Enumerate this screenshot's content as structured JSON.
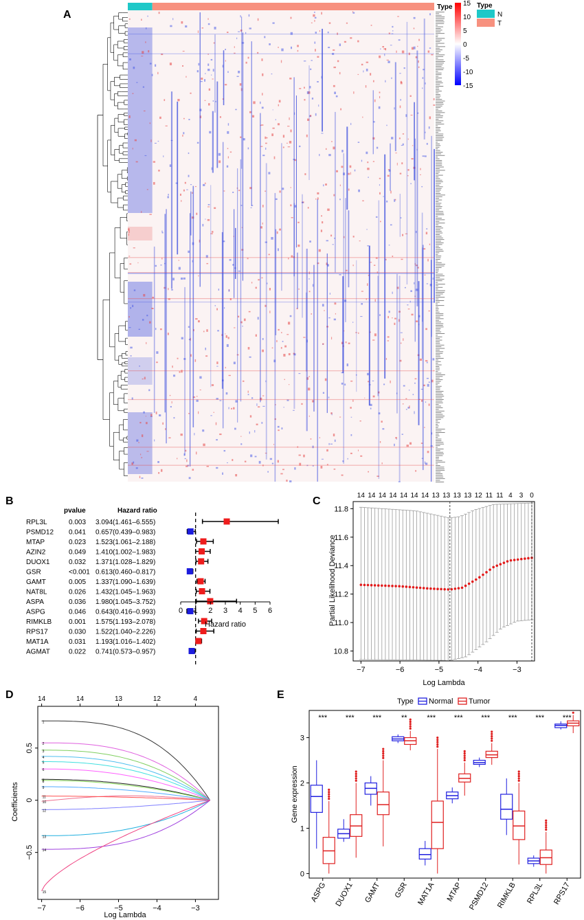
{
  "figure": {
    "panels": {
      "A": "A",
      "B": "B",
      "C": "C",
      "D": "D",
      "E": "E"
    }
  },
  "chart_data": [
    {
      "panel": "A",
      "type": "heatmap",
      "title": "",
      "column_annotation_label": "Type",
      "groups": [
        "N",
        "T"
      ],
      "group_colors": [
        "#1fc8c8",
        "#f7917f"
      ],
      "group_fractions": [
        0.08,
        0.92
      ],
      "color_scale": {
        "min": -15,
        "max": 15,
        "ticks": [
          15,
          10,
          5,
          0,
          -5,
          -10,
          -15
        ],
        "low_color": "#0000ff",
        "mid_color": "#ffffff",
        "high_color": "#ff0000"
      },
      "legend_title": "Type"
    },
    {
      "panel": "B",
      "type": "forest",
      "col_pvalue": "pvalue",
      "col_hr": "Hazard ratio",
      "xlabel": "Hazard ratio",
      "xlim": [
        0,
        6
      ],
      "xticks": [
        0,
        1,
        2,
        3,
        4,
        5,
        6
      ],
      "reference": 1,
      "rows": [
        {
          "gene": "RPL3L",
          "pvalue": "0.003",
          "hr_text": "3.094(1.461–6.555)",
          "hr": 3.094,
          "lo": 1.461,
          "hi": 6.555
        },
        {
          "gene": "PSMD12",
          "pvalue": "0.041",
          "hr_text": "0.657(0.439–0.983)",
          "hr": 0.657,
          "lo": 0.439,
          "hi": 0.983
        },
        {
          "gene": "MTAP",
          "pvalue": "0.023",
          "hr_text": "1.523(1.061–2.188)",
          "hr": 1.523,
          "lo": 1.061,
          "hi": 2.188
        },
        {
          "gene": "AZIN2",
          "pvalue": "0.049",
          "hr_text": "1.410(1.002–1.983)",
          "hr": 1.41,
          "lo": 1.002,
          "hi": 1.983
        },
        {
          "gene": "DUOX1",
          "pvalue": "0.032",
          "hr_text": "1.371(1.028–1.829)",
          "hr": 1.371,
          "lo": 1.028,
          "hi": 1.829
        },
        {
          "gene": "GSR",
          "pvalue": "<0.001",
          "hr_text": "0.613(0.460–0.817)",
          "hr": 0.613,
          "lo": 0.46,
          "hi": 0.817
        },
        {
          "gene": "GAMT",
          "pvalue": "0.005",
          "hr_text": "1.337(1.090–1.639)",
          "hr": 1.337,
          "lo": 1.09,
          "hi": 1.639
        },
        {
          "gene": "NAT8L",
          "pvalue": "0.026",
          "hr_text": "1.432(1.045–1.963)",
          "hr": 1.432,
          "lo": 1.045,
          "hi": 1.963
        },
        {
          "gene": "ASPA",
          "pvalue": "0.036",
          "hr_text": "1.980(1.045–3.752)",
          "hr": 1.98,
          "lo": 1.045,
          "hi": 3.752
        },
        {
          "gene": "ASPG",
          "pvalue": "0.046",
          "hr_text": "0.643(0.416–0.993)",
          "hr": 0.643,
          "lo": 0.416,
          "hi": 0.993
        },
        {
          "gene": "RIMKLB",
          "pvalue": "0.001",
          "hr_text": "1.575(1.193–2.078)",
          "hr": 1.575,
          "lo": 1.193,
          "hi": 2.078
        },
        {
          "gene": "RPS17",
          "pvalue": "0.030",
          "hr_text": "1.522(1.040–2.226)",
          "hr": 1.522,
          "lo": 1.04,
          "hi": 2.226
        },
        {
          "gene": "MAT1A",
          "pvalue": "0.031",
          "hr_text": "1.193(1.016–1.402)",
          "hr": 1.193,
          "lo": 1.016,
          "hi": 1.402
        },
        {
          "gene": "AGMAT",
          "pvalue": "0.022",
          "hr_text": "0.741(0.573–0.957)",
          "hr": 0.741,
          "lo": 0.573,
          "hi": 0.957
        }
      ]
    },
    {
      "panel": "C",
      "type": "scatter",
      "title": "",
      "xlabel": "Log Lambda",
      "ylabel": "Partial Likelihood Deviance",
      "xlim": [
        -7.2,
        -2.55
      ],
      "ylim": [
        10.73,
        11.85
      ],
      "xticks": [
        -7,
        -6,
        -5,
        -4,
        -3
      ],
      "yticks": [
        10.8,
        11.0,
        11.2,
        11.4,
        11.6,
        11.8
      ],
      "top_ticks": [
        "14",
        "14",
        "14",
        "14",
        "14",
        "14",
        "14",
        "13",
        "13",
        "13",
        "13",
        "12",
        "11",
        "11",
        "4",
        "3",
        "0"
      ],
      "vlines": [
        -4.72,
        -2.62
      ],
      "series": [
        {
          "name": "mean",
          "lambda_range": [
            -7.0,
            -2.62
          ],
          "n": 50,
          "mean_points": [
            [
              -7.0,
              11.265
            ],
            [
              -6.0,
              11.255
            ],
            [
              -5.2,
              11.238
            ],
            [
              -4.72,
              11.232
            ],
            [
              -4.4,
              11.245
            ],
            [
              -4.0,
              11.31
            ],
            [
              -3.6,
              11.39
            ],
            [
              -3.2,
              11.435
            ],
            [
              -2.62,
              11.455
            ]
          ],
          "upper_points": [
            [
              -7.0,
              11.81
            ],
            [
              -5.6,
              11.785
            ],
            [
              -4.72,
              11.735
            ],
            [
              -4.45,
              11.745
            ],
            [
              -4.1,
              11.79
            ],
            [
              -3.6,
              11.83
            ],
            [
              -2.62,
              11.84
            ]
          ],
          "lower_points": [
            [
              -7.0,
              10.74
            ],
            [
              -6.0,
              10.738
            ],
            [
              -5.0,
              10.735
            ],
            [
              -4.72,
              10.733
            ],
            [
              -4.3,
              10.76
            ],
            [
              -3.8,
              10.86
            ],
            [
              -3.4,
              10.96
            ],
            [
              -3.0,
              11.01
            ],
            [
              -2.62,
              11.02
            ]
          ]
        }
      ]
    },
    {
      "panel": "D",
      "type": "line",
      "title": "",
      "xlabel": "Log Lambda",
      "ylabel": "Coefficients",
      "xlim": [
        -7.1,
        -2.4
      ],
      "ylim": [
        -0.95,
        0.9
      ],
      "xticks": [
        -7,
        -6,
        -5,
        -4,
        -3
      ],
      "yticks": [
        -0.5,
        0,
        0.5
      ],
      "top_ticks": [
        {
          "x": -7,
          "label": "14"
        },
        {
          "x": -6,
          "label": "14"
        },
        {
          "x": -5,
          "label": "13"
        },
        {
          "x": -4,
          "label": "12"
        },
        {
          "x": -3,
          "label": "4"
        }
      ],
      "converge_x": -2.62,
      "series": [
        {
          "id": "1",
          "color": "#333333",
          "start": 0.76,
          "decay": 2.2,
          "bump": 0
        },
        {
          "id": "2",
          "color": "#df5fdf",
          "start": 0.55,
          "decay": 1.8,
          "bump": 0
        },
        {
          "id": "3",
          "color": "#7fcf5f",
          "start": 0.48,
          "decay": 1.6,
          "bump": 0
        },
        {
          "id": "4",
          "color": "#4fbfef",
          "start": 0.42,
          "decay": 1.5,
          "bump": 0
        },
        {
          "id": "5",
          "color": "#3fdfdf",
          "start": 0.37,
          "decay": 1.4,
          "bump": 0
        },
        {
          "id": "6",
          "color": "#ff5fff",
          "start": 0.3,
          "decay": 1.3,
          "bump": 0
        },
        {
          "id": "7",
          "color": "#222222",
          "start": 0.2,
          "decay": 1.2,
          "bump": 0
        },
        {
          "id": "8",
          "color": "#8fdf5f",
          "start": 0.19,
          "decay": 1.1,
          "bump": 0
        },
        {
          "id": "9",
          "color": "#4faaff",
          "start": 0.13,
          "decay": 1.0,
          "bump": 0
        },
        {
          "id": "10",
          "color": "#ef6f8f",
          "start": -0.01,
          "decay": 1.0,
          "bump": 0.05
        },
        {
          "id": "11",
          "color": "#ff4f4f",
          "start": 0.04,
          "decay": 0.9,
          "bump": 0
        },
        {
          "id": "12",
          "color": "#7f7fff",
          "start": -0.09,
          "decay": 0.9,
          "bump": 0
        },
        {
          "id": "13",
          "color": "#1fafdf",
          "start": -0.34,
          "decay": 1.5,
          "bump": 0
        },
        {
          "id": "14",
          "color": "#9f3fdf",
          "start": -0.47,
          "decay": 1.8,
          "bump": 0
        },
        {
          "id": "15",
          "color": "#ef3f7f",
          "start": -0.87,
          "decay": 2.6,
          "bump": 0
        }
      ]
    },
    {
      "panel": "E",
      "type": "box",
      "title": "",
      "xlabel": "",
      "ylabel": "Gene expression",
      "ylim": [
        -0.1,
        3.6
      ],
      "yticks": [
        0,
        1,
        2,
        3
      ],
      "legend_title": "Type",
      "legend": [
        "Normal",
        "Tumor"
      ],
      "legend_placement": "top",
      "colors": [
        "#1f1fdf",
        "#df1f1f"
      ],
      "categories": [
        "ASPG",
        "DUOX1",
        "GAMT",
        "GSR",
        "MAT1A",
        "MTAP",
        "PSMD12",
        "RIMKLB",
        "RPL3L",
        "RPS17"
      ],
      "significance": [
        "***",
        "***",
        "***",
        "**",
        "***",
        "***",
        "***",
        "***",
        "***",
        "***"
      ],
      "series": [
        {
          "name": "Normal",
          "boxes": [
            [
              0.55,
              1.35,
              1.7,
              1.95,
              2.5
            ],
            [
              0.7,
              0.78,
              0.88,
              0.98,
              1.2
            ],
            [
              1.5,
              1.75,
              1.88,
              2.0,
              2.15
            ],
            [
              2.88,
              2.93,
              2.97,
              3.02,
              3.07
            ],
            [
              0.18,
              0.32,
              0.42,
              0.55,
              0.72
            ],
            [
              1.55,
              1.65,
              1.72,
              1.8,
              1.9
            ],
            [
              2.35,
              2.41,
              2.45,
              2.5,
              2.56
            ],
            [
              0.85,
              1.2,
              1.42,
              1.75,
              2.1
            ],
            [
              0.15,
              0.22,
              0.28,
              0.34,
              0.4
            ],
            [
              3.18,
              3.22,
              3.27,
              3.3,
              3.36
            ]
          ]
        },
        {
          "name": "Tumor",
          "boxes": [
            [
              0.0,
              0.22,
              0.5,
              0.8,
              1.6
            ],
            [
              0.35,
              0.82,
              1.05,
              1.3,
              2.0
            ],
            [
              0.6,
              1.3,
              1.52,
              1.8,
              2.5
            ],
            [
              2.72,
              2.85,
              2.93,
              3.0,
              3.15
            ],
            [
              0.0,
              0.55,
              1.13,
              1.6,
              2.75
            ],
            [
              1.72,
              2.02,
              2.1,
              2.2,
              2.45
            ],
            [
              2.4,
              2.56,
              2.62,
              2.7,
              2.88
            ],
            [
              0.2,
              0.75,
              1.05,
              1.38,
              2.0
            ],
            [
              0.0,
              0.2,
              0.35,
              0.52,
              0.92
            ],
            [
              3.1,
              3.26,
              3.32,
              3.37,
              3.5
            ]
          ]
        }
      ]
    }
  ]
}
